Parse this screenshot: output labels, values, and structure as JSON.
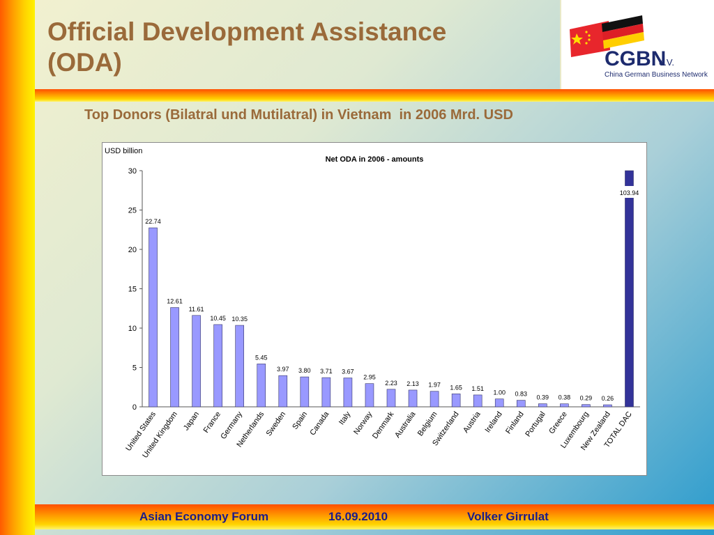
{
  "slide": {
    "title_line1": "Official Development Assistance",
    "title_line2": "(ODA)",
    "subtitle": "Top Donors (Bilatral und Mutilatral) in Vietnam  in 2006 Mrd. USD"
  },
  "logo": {
    "name": "CGBN",
    "suffix": "e.V.",
    "tagline": "China German Business Network"
  },
  "footer": {
    "event": "Asian Economy Forum",
    "date": "16.09.2010",
    "author": "Volker Girrulat"
  },
  "colors": {
    "bar_fill": "#9999ff",
    "total_bar_fill": "#333399",
    "title_color": "#9a6a3a",
    "footer_text": "#1b1b8a"
  },
  "chart_data": {
    "type": "bar",
    "title": "Net ODA in 2006 - amounts",
    "ylabel": "USD billion",
    "ylim": [
      0,
      30
    ],
    "yticks": [
      0,
      5,
      10,
      15,
      20,
      25,
      30
    ],
    "grid": false,
    "legend": "none",
    "categories": [
      "United States",
      "United Kingdom",
      "Japan",
      "France",
      "Germany",
      "Netherlands",
      "Sweden",
      "Spain",
      "Canada",
      "Italy",
      "Norway",
      "Denmark",
      "Australia",
      "Belgium",
      "Switzerland",
      "Austria",
      "Ireland",
      "Finland",
      "Portugal",
      "Greece",
      "Luxembourg",
      "New Zealand",
      "TOTAL DAC"
    ],
    "values": [
      22.74,
      12.61,
      11.61,
      10.45,
      10.35,
      5.45,
      3.97,
      3.8,
      3.71,
      3.67,
      2.95,
      2.23,
      2.13,
      1.97,
      1.65,
      1.51,
      1.0,
      0.83,
      0.39,
      0.38,
      0.29,
      0.26,
      103.94
    ],
    "value_labels": [
      "22.74",
      "12.61",
      "11.61",
      "10.45",
      "10.35",
      "5.45",
      "3.97",
      "3.80",
      "3.71",
      "3.67",
      "2.95",
      "2.23",
      "2.13",
      "1.97",
      "1.65",
      "1.51",
      "1.00",
      "0.83",
      "0.39",
      "0.38",
      "0.29",
      "0.26",
      "103.94"
    ],
    "highlight_category": "TOTAL DAC"
  }
}
